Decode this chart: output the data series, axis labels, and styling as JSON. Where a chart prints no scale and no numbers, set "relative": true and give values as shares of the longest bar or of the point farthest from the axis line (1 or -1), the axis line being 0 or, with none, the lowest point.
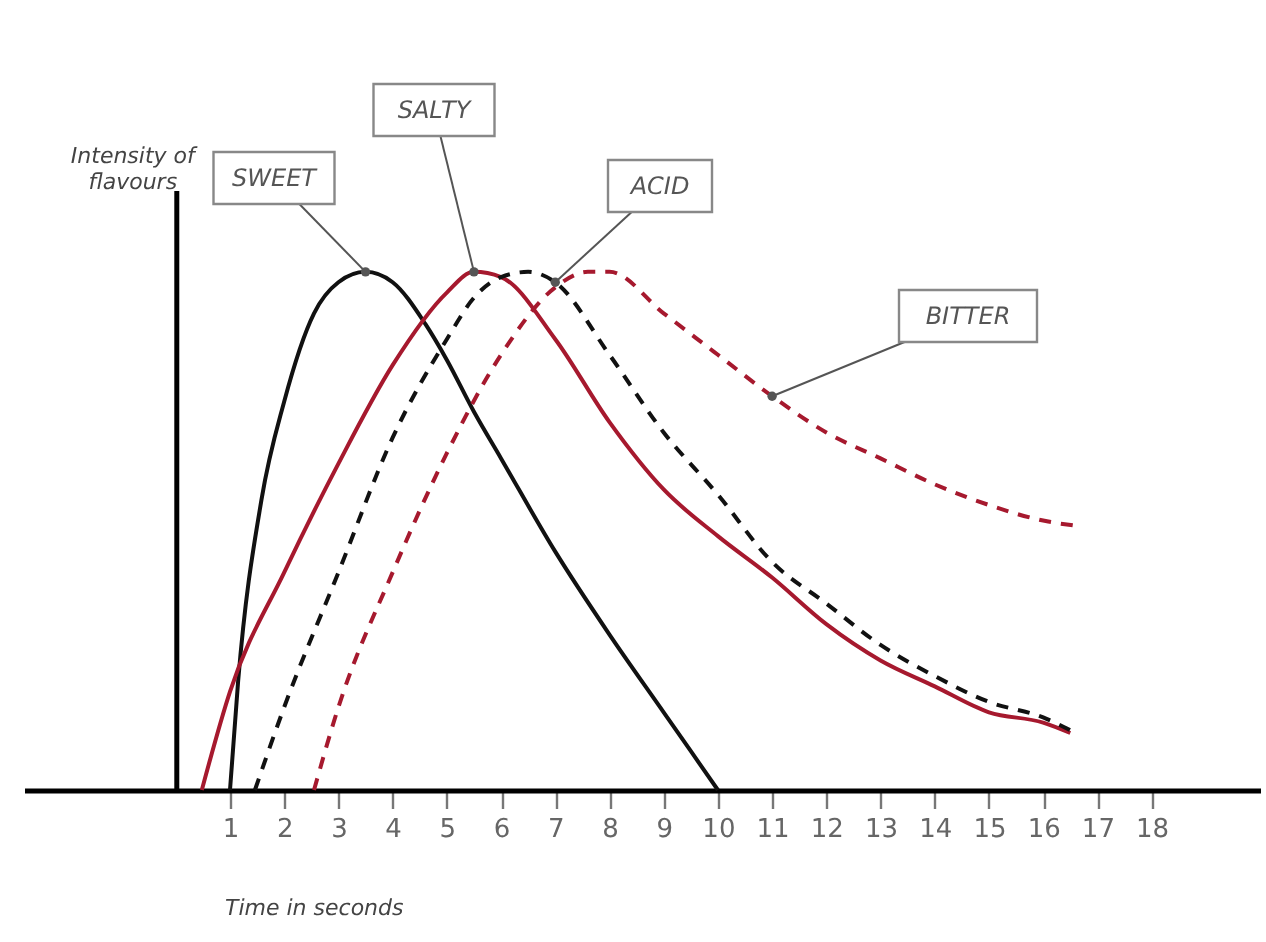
{
  "chart_data": {
    "type": "line",
    "relative": true,
    "xlabel": "Time in seconds",
    "ylabel": "Intensity of flavours",
    "xlim": [
      -2.8,
      20
    ],
    "xticks": [
      1,
      2,
      3,
      4,
      5,
      6,
      7,
      8,
      9,
      10,
      11,
      12,
      13,
      14,
      15,
      16,
      17,
      18
    ],
    "grid": false,
    "marker": "none",
    "tick_labels": "x",
    "series": [
      {
        "name": "SWEET",
        "color": "#111111",
        "line_style": "solid",
        "x": [
          1,
          1.15,
          1.58,
          2,
          2.55,
          3,
          3.5,
          4,
          4.6,
          5,
          5.5,
          6,
          7,
          8,
          9,
          10
        ],
        "values": [
          0,
          0.21,
          0.56,
          0.75,
          0.92,
          0.98,
          1,
          0.98,
          0.9,
          0.83,
          0.73,
          0.64,
          0.46,
          0.3,
          0.15,
          0
        ]
      },
      {
        "name": "SALTY",
        "color": "#a6192e",
        "line_style": "solid",
        "x": [
          0.48,
          1,
          2,
          3,
          4,
          5,
          5.5,
          6,
          7,
          8,
          9,
          10,
          11,
          12,
          13,
          14,
          15,
          16,
          16.5
        ],
        "values": [
          0,
          0.19,
          0.42,
          0.63,
          0.82,
          0.96,
          1,
          0.99,
          0.87,
          0.71,
          0.58,
          0.49,
          0.41,
          0.32,
          0.25,
          0.2,
          0.15,
          0.13,
          0.11
        ]
      },
      {
        "name": "ACID",
        "color": "#111111",
        "line_style": "dashed",
        "x": [
          1.46,
          2,
          3,
          4,
          5,
          5.5,
          6,
          6.5,
          7,
          8,
          9,
          10,
          11,
          12,
          13,
          14,
          15,
          16,
          16.6
        ],
        "values": [
          0,
          0.16,
          0.42,
          0.68,
          0.87,
          0.95,
          0.99,
          1,
          0.98,
          0.84,
          0.69,
          0.57,
          0.44,
          0.36,
          0.28,
          0.22,
          0.17,
          0.14,
          0.11
        ]
      },
      {
        "name": "BITTER",
        "color": "#a6192e",
        "line_style": "dashed",
        "x": [
          2.55,
          3,
          4,
          5,
          6,
          7,
          7.6,
          8,
          9,
          10,
          11,
          12,
          13,
          14,
          15,
          16,
          16.6
        ],
        "values": [
          0,
          0.16,
          0.42,
          0.65,
          0.84,
          0.97,
          1,
          1,
          0.92,
          0.84,
          0.76,
          0.69,
          0.64,
          0.59,
          0.55,
          0.52,
          0.51
        ]
      }
    ]
  }
}
